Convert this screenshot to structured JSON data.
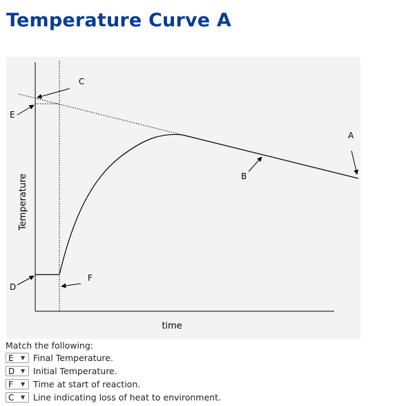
{
  "title": "Temperature Curve A",
  "figure": {
    "labels": {
      "A": "A",
      "B": "B",
      "C": "C",
      "D": "D",
      "E": "E",
      "F": "F"
    },
    "xlabel": "time",
    "ylabel": "Temperature"
  },
  "match": {
    "prompt": "Match the following:",
    "items": [
      {
        "selected": "E",
        "text": "Final Temperature."
      },
      {
        "selected": "D",
        "text": "Initial Temperature."
      },
      {
        "selected": "F",
        "text": "Time at start of reaction."
      },
      {
        "selected": "C",
        "text": "Line indicating loss of heat to environment."
      }
    ]
  }
}
